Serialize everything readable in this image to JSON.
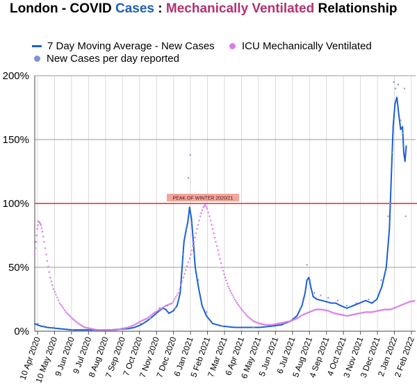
{
  "title": {
    "part1": "London - COVID ",
    "part2": "Cases",
    "part3": " : ",
    "part4": "Mechanically Ventilated",
    "part5": " Relationship"
  },
  "colors": {
    "cases_line": "#1a5fd6",
    "cases_dots": "#7f93d8",
    "icu": "#d77de8",
    "peak_line": "#e0625a",
    "peak_box": "#f4a59b",
    "title_cases": "#1f5fae",
    "title_vent": "#b5306f"
  },
  "chart_data": {
    "type": "line",
    "y_unit": "%",
    "ylim": [
      0,
      200
    ],
    "y_ticks": [
      "0%",
      "50%",
      "100%",
      "150%",
      "200%"
    ],
    "y_tick_values": [
      0,
      50,
      100,
      150,
      200
    ],
    "x_tick_labels": [
      "10 Apr 2020",
      "10 May 2020",
      "9 Jun 2020",
      "9 Jul 2020",
      "8 Aug 2020",
      "7 Sep 2020",
      "7 Oct 2020",
      "7 Nov 2020",
      "7 Dec 2020",
      "6 Jan 2021",
      "5 Feb 2021",
      "7 Mar 2021",
      "6 Apr 2021",
      "6 May 2021",
      "5 Jun 2021",
      "6 Jul 2021",
      "5 Aug 2021",
      "4 Sep 2021",
      "4 Oct 2021",
      "3 Nov 2021",
      "3 Dec 2021",
      "2 Jan 2022",
      "2 Feb 2022"
    ],
    "grid": true,
    "legend_position": "top",
    "annotation": {
      "label": "PEAK OF WINTER 2020/21",
      "y": 100
    },
    "series": [
      {
        "name": "7 Day Moving Average - New Cases",
        "style": "line",
        "points": [
          [
            0,
            6
          ],
          [
            4,
            5
          ],
          [
            10,
            4
          ],
          [
            20,
            3
          ],
          [
            40,
            2
          ],
          [
            60,
            1
          ],
          [
            90,
            1
          ],
          [
            120,
            1
          ],
          [
            150,
            2
          ],
          [
            160,
            3
          ],
          [
            170,
            5
          ],
          [
            180,
            8
          ],
          [
            190,
            12
          ],
          [
            197,
            15
          ],
          [
            205,
            18
          ],
          [
            210,
            17
          ],
          [
            215,
            14
          ],
          [
            222,
            16
          ],
          [
            228,
            20
          ],
          [
            233,
            30
          ],
          [
            236,
            50
          ],
          [
            239,
            70
          ],
          [
            242,
            78
          ],
          [
            245,
            85
          ],
          [
            248,
            97
          ],
          [
            251,
            88
          ],
          [
            254,
            70
          ],
          [
            257,
            50
          ],
          [
            262,
            35
          ],
          [
            268,
            20
          ],
          [
            275,
            12
          ],
          [
            285,
            6
          ],
          [
            300,
            4
          ],
          [
            320,
            3
          ],
          [
            340,
            3
          ],
          [
            360,
            3
          ],
          [
            380,
            4
          ],
          [
            395,
            5
          ],
          [
            410,
            8
          ],
          [
            420,
            12
          ],
          [
            428,
            20
          ],
          [
            433,
            30
          ],
          [
            436,
            40
          ],
          [
            439,
            42
          ],
          [
            442,
            35
          ],
          [
            446,
            27
          ],
          [
            452,
            25
          ],
          [
            460,
            24
          ],
          [
            468,
            23
          ],
          [
            475,
            22
          ],
          [
            482,
            22
          ],
          [
            490,
            20
          ],
          [
            500,
            18
          ],
          [
            510,
            20
          ],
          [
            520,
            22
          ],
          [
            530,
            24
          ],
          [
            540,
            22
          ],
          [
            548,
            25
          ],
          [
            556,
            35
          ],
          [
            563,
            50
          ],
          [
            568,
            80
          ],
          [
            571,
            120
          ],
          [
            574,
            160
          ],
          [
            577,
            178
          ],
          [
            580,
            183
          ],
          [
            583,
            170
          ],
          [
            586,
            158
          ],
          [
            589,
            160
          ],
          [
            591,
            140
          ],
          [
            593,
            133
          ],
          [
            595,
            145
          ]
        ]
      },
      {
        "name": "ICU Mechanically Ventilated",
        "style": "dots",
        "points": [
          [
            0,
            60
          ],
          [
            2,
            70
          ],
          [
            4,
            80
          ],
          [
            6,
            86
          ],
          [
            8,
            85
          ],
          [
            10,
            83
          ],
          [
            12,
            78
          ],
          [
            15,
            70
          ],
          [
            20,
            55
          ],
          [
            25,
            42
          ],
          [
            30,
            33
          ],
          [
            40,
            22
          ],
          [
            50,
            15
          ],
          [
            60,
            10
          ],
          [
            70,
            6
          ],
          [
            80,
            3
          ],
          [
            90,
            2
          ],
          [
            100,
            1
          ],
          [
            110,
            1
          ],
          [
            120,
            1
          ],
          [
            130,
            1
          ],
          [
            140,
            2
          ],
          [
            150,
            3
          ],
          [
            160,
            5
          ],
          [
            170,
            8
          ],
          [
            180,
            10
          ],
          [
            190,
            14
          ],
          [
            200,
            17
          ],
          [
            210,
            20
          ],
          [
            220,
            22
          ],
          [
            230,
            30
          ],
          [
            240,
            45
          ],
          [
            250,
            60
          ],
          [
            255,
            70
          ],
          [
            260,
            80
          ],
          [
            265,
            90
          ],
          [
            270,
            97
          ],
          [
            273,
            99
          ],
          [
            276,
            96
          ],
          [
            280,
            90
          ],
          [
            285,
            80
          ],
          [
            290,
            70
          ],
          [
            295,
            60
          ],
          [
            300,
            50
          ],
          [
            305,
            42
          ],
          [
            310,
            35
          ],
          [
            315,
            30
          ],
          [
            320,
            25
          ],
          [
            330,
            18
          ],
          [
            340,
            12
          ],
          [
            350,
            8
          ],
          [
            360,
            6
          ],
          [
            370,
            5
          ],
          [
            380,
            5
          ],
          [
            390,
            6
          ],
          [
            400,
            7
          ],
          [
            410,
            8
          ],
          [
            420,
            10
          ],
          [
            430,
            13
          ],
          [
            440,
            15
          ],
          [
            450,
            17
          ],
          [
            460,
            17
          ],
          [
            470,
            16
          ],
          [
            480,
            14
          ],
          [
            490,
            13
          ],
          [
            500,
            12
          ],
          [
            510,
            13
          ],
          [
            520,
            14
          ],
          [
            530,
            15
          ],
          [
            540,
            15
          ],
          [
            550,
            16
          ],
          [
            560,
            17
          ],
          [
            570,
            17
          ],
          [
            580,
            19
          ],
          [
            590,
            21
          ],
          [
            600,
            23
          ],
          [
            610,
            24
          ]
        ]
      },
      {
        "name": "New Cases per day reported",
        "style": "scatter",
        "points": [
          [
            0,
            8
          ],
          [
            5,
            6
          ],
          [
            15,
            4
          ],
          [
            30,
            3
          ],
          [
            60,
            1
          ],
          [
            100,
            1
          ],
          [
            140,
            2
          ],
          [
            170,
            6
          ],
          [
            185,
            10
          ],
          [
            200,
            18
          ],
          [
            212,
            20
          ],
          [
            225,
            18
          ],
          [
            238,
            60
          ],
          [
            242,
            80
          ],
          [
            246,
            120
          ],
          [
            249,
            138
          ],
          [
            252,
            85
          ],
          [
            256,
            60
          ],
          [
            262,
            40
          ],
          [
            275,
            15
          ],
          [
            300,
            4
          ],
          [
            350,
            3
          ],
          [
            400,
            6
          ],
          [
            425,
            18
          ],
          [
            436,
            52
          ],
          [
            441,
            40
          ],
          [
            448,
            30
          ],
          [
            458,
            28
          ],
          [
            470,
            26
          ],
          [
            485,
            24
          ],
          [
            500,
            20
          ],
          [
            515,
            22
          ],
          [
            535,
            25
          ],
          [
            555,
            40
          ],
          [
            566,
            90
          ],
          [
            572,
            140
          ],
          [
            575,
            195
          ],
          [
            578,
            190
          ],
          [
            582,
            193
          ],
          [
            586,
            165
          ],
          [
            589,
            155
          ],
          [
            592,
            190
          ],
          [
            594,
            90
          ]
        ]
      }
    ]
  }
}
